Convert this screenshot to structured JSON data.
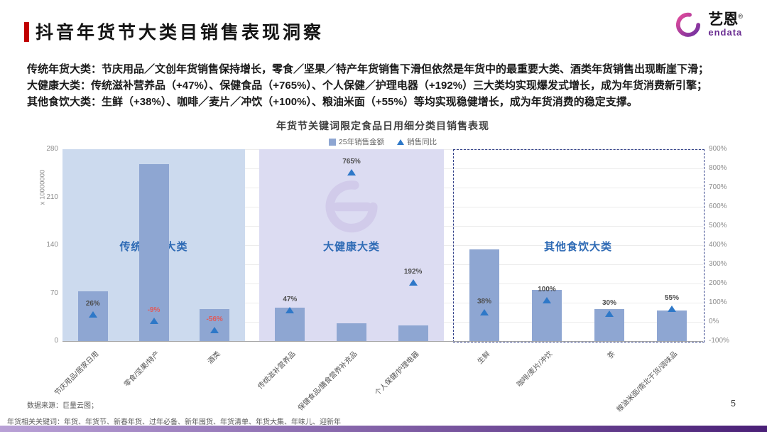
{
  "page": {
    "title": "抖音年货节大类目销售表现洞察",
    "page_number": "5"
  },
  "logo": {
    "brand": "艺恩",
    "reg": "®",
    "sub": "endata"
  },
  "insights": [
    {
      "lead": "传统年货大类：",
      "text": "节庆用品／文创年货销售保持增长，零食／坚果／特产年货销售下滑但依然是年货中的最重要大类、酒类年货销售出现断崖下滑；"
    },
    {
      "lead": "大健康大类：",
      "text": "传统滋补营养品（+47%）、保健食品（+765%）、个人保健／护理电器（+192%）三大类均实现爆发式增长，成为年货消费新引擎；"
    },
    {
      "lead": "其他食饮大类：",
      "text": "生鲜（+38%）、咖啡／麦片／冲饮（+100%）、粮油米面（+55%）等均实现稳健增长，成为年货消费的稳定支撑。"
    }
  ],
  "footer": {
    "source": "数据来源：巨量云图；",
    "keywords": "年货相关关键词：年货、年货节、新春年货、过年必备、新年囤货、年货清单、年货大集、年味儿、迎新年"
  },
  "colors": {
    "accent": "#c00000",
    "bar": "#8ea6d2",
    "triangle": "#2e78c8",
    "negative": "#e05b5b",
    "group_label": "#2f6bb5",
    "group_bg_blue": "#ccdaee",
    "group_bg_purple": "#dcdcf2",
    "dashed_border": "#33418a",
    "footer_bar_from": "#b9a1d6",
    "footer_bar_to": "#4a2077"
  },
  "chart_data": {
    "type": "bar",
    "title": "年货节关键词限定食品日用细分类目销售表现",
    "legend": [
      {
        "marker": "square",
        "label": "25年销售金额"
      },
      {
        "marker": "triangle",
        "label": "销售同比"
      }
    ],
    "y_left": {
      "unit_label": "x 10000000",
      "ticks": [
        0,
        70,
        140,
        210,
        280
      ],
      "min": 0,
      "max": 280
    },
    "y_right": {
      "min": -100,
      "max": 900,
      "step": 100,
      "suffix": "%"
    },
    "grid": true,
    "groups": [
      {
        "name": "传统年货大类",
        "style": "blue",
        "items": [
          {
            "category": "节庆用品/居家日用",
            "sales": 73,
            "yoy": 26,
            "label": "26%"
          },
          {
            "category": "零食/坚果/特产",
            "sales": 258,
            "yoy": -9,
            "label": "-9%"
          },
          {
            "category": "酒类",
            "sales": 47,
            "yoy": -56,
            "label": "-56%"
          }
        ]
      },
      {
        "name": "大健康大类",
        "style": "purple",
        "items": [
          {
            "category": "传统滋补营养品",
            "sales": 49,
            "yoy": 47,
            "label": "47%"
          },
          {
            "category": "保健食品/膳食营养补充品",
            "sales": 26,
            "yoy": 765,
            "label": "765%"
          },
          {
            "category": "个人保健/护理电器",
            "sales": 23,
            "yoy": 192,
            "label": "192%"
          }
        ]
      },
      {
        "name": "其他食饮大类",
        "style": "dashed",
        "items": [
          {
            "category": "生鲜",
            "sales": 134,
            "yoy": 38,
            "label": "38%"
          },
          {
            "category": "咖啡/麦片/冲饮",
            "sales": 75,
            "yoy": 100,
            "label": "100%"
          },
          {
            "category": "茶",
            "sales": 47,
            "yoy": 30,
            "label": "30%"
          },
          {
            "category": "粮油米面/南北干货/调味品",
            "sales": 45,
            "yoy": 55,
            "label": "55%"
          }
        ]
      }
    ]
  }
}
